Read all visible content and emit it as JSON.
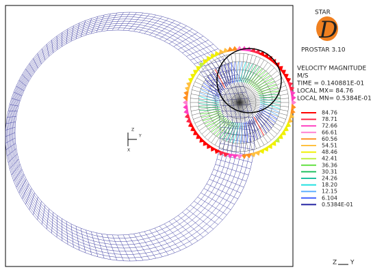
{
  "logo": {
    "brand": "STAR",
    "letter": "D",
    "product": "PROSTAR 3.10"
  },
  "info": {
    "quantity": "VELOCITY MAGNITUDE",
    "unit": "M/S",
    "time": "TIME = 0.140881E-01",
    "max": "LOCAL MX= 84.76",
    "min": "LOCAL MN= 0.5384E-01"
  },
  "legend": [
    {
      "label": "84.76",
      "color": "#ff0000"
    },
    {
      "label": "78.71",
      "color": "#ff2848"
    },
    {
      "label": "72.66",
      "color": "#ff40c0"
    },
    {
      "label": "66.61",
      "color": "#ff80d0"
    },
    {
      "label": "60.56",
      "color": "#ff9020"
    },
    {
      "label": "54.51",
      "color": "#ffc040"
    },
    {
      "label": "48.46",
      "color": "#f0f000"
    },
    {
      "label": "42.41",
      "color": "#c0f040"
    },
    {
      "label": "36.36",
      "color": "#60e040"
    },
    {
      "label": "30.31",
      "color": "#20c060"
    },
    {
      "label": "24.26",
      "color": "#20c0a0"
    },
    {
      "label": "18.20",
      "color": "#20e0e0"
    },
    {
      "label": "12.15",
      "color": "#60b0ff"
    },
    {
      "label": "6.104",
      "color": "#4060ff"
    },
    {
      "label": "0.5384E-01",
      "color": "#2020a0"
    }
  ],
  "triad": {
    "x": "X",
    "y": "Y",
    "z": "Z"
  },
  "view_axes": {
    "z": "Z",
    "y": "Y"
  }
}
